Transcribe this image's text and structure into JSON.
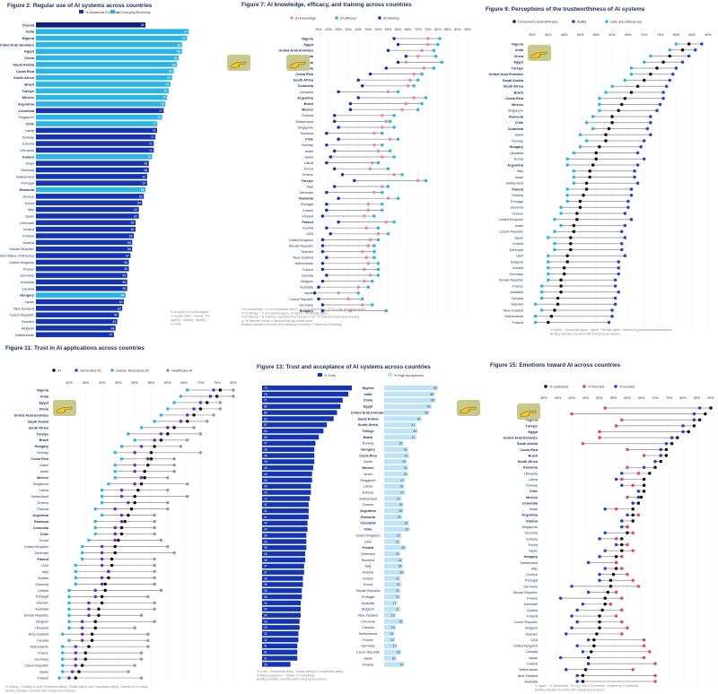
{
  "colors": {
    "dark": "#1535b0",
    "cyan": "#29b6e6",
    "light": "#bfe3f5",
    "pink": "#e889b3",
    "purple": "#6a2ec9",
    "blue": "#2546c8",
    "black": "#111111",
    "gray": "#9a9a9a",
    "red": "#e0457b"
  },
  "icons": [
    "pointing-hand-icon"
  ],
  "fig2": {
    "title": "Figure 2: Regular use of AI systems across countries",
    "legend": [
      "% Advanced Economy",
      "% Emerging Economy"
    ],
    "note": [
      "% Using AI on a semi-regular",
      "or regular basis - 'weekly', 'fre-",
      "quently', 'monthly', 'weekly'",
      "or 'daily'"
    ],
    "countries": [
      "Overall",
      "India",
      "Nigeria",
      "United Arab Emirates",
      "Egypt",
      "China",
      "Saudi Arabia",
      "Costa Rica",
      "South Africa",
      "Brazil",
      "Türkiye",
      "Mexico",
      "Argentina",
      "Colombia",
      "Singapore",
      "Chile",
      "Latvia",
      "Norway",
      "Estonia",
      "Lithuania",
      "Poland",
      "Israel",
      "Slovenia",
      "Switzerland",
      "Portugal",
      "Romania",
      "Greece",
      "Korea",
      "Italy",
      "Spain",
      "Denmark",
      "Ireland",
      "Finland",
      "Austria",
      "Slovak Republic",
      "United States of America",
      "United Kingdom",
      "France",
      "Germany",
      "Australia",
      "Canada",
      "Hungary",
      "Japan",
      "New Zealand",
      "Czech Republic",
      "Sweden",
      "Belgium",
      "Netherlands"
    ],
    "values": [
      66,
      92,
      91,
      88,
      88,
      86,
      85,
      83,
      82,
      81,
      80,
      79,
      78,
      77,
      76,
      73,
      73,
      72,
      71,
      71,
      70,
      68,
      68,
      67,
      67,
      66,
      65,
      64,
      62,
      62,
      60,
      60,
      59,
      58,
      58,
      57,
      56,
      56,
      55,
      55,
      55,
      54,
      53,
      52,
      50,
      49,
      48,
      47
    ],
    "emerging": [
      1,
      1,
      1,
      1,
      1,
      1,
      1,
      1,
      1,
      1,
      1,
      1,
      1,
      0,
      1,
      1,
      0,
      0,
      0,
      0,
      1,
      0,
      0,
      0,
      0,
      1,
      0,
      0,
      0,
      0,
      0,
      0,
      0,
      0,
      0,
      0,
      0,
      0,
      0,
      0,
      0,
      1,
      0,
      0,
      0,
      0,
      0,
      0
    ],
    "boldRows": [
      "Overall",
      "India",
      "Nigeria",
      "United Arab Emirates",
      "Egypt",
      "China",
      "Saudi Arabia",
      "Costa Rica",
      "South Africa",
      "Brazil",
      "Türkiye",
      "Mexico",
      "Argentina",
      "Colombia",
      "Chile",
      "Poland",
      "Romania",
      "Hungary"
    ]
  },
  "fig7": {
    "title": "Figure 7: AI knowledge, efficacy, and training across countries",
    "legend": [
      "AI knowledge",
      "AI efficacy",
      "AI training"
    ],
    "ticks": [
      "20%",
      "25%",
      "30%",
      "35%",
      "40%",
      "45%",
      "50%",
      "55%",
      "60%",
      "65%",
      "70%",
      "75%",
      "80%",
      "85%",
      "90%",
      "95%"
    ],
    "tickValues": [
      20,
      25,
      30,
      35,
      40,
      45,
      50,
      55,
      60,
      65,
      70,
      75,
      80,
      85,
      90,
      95
    ],
    "countries": [
      "Nigeria",
      "Egypt",
      "United Arab Emirates",
      "India",
      "China",
      "Saudi Arabia",
      "Costa Rica",
      "South Africa",
      "Colombia",
      "Lithuania",
      "Argentina",
      "Brazil",
      "Mexico",
      "Estonia",
      "Switzerland",
      "Singapore",
      "Slovenia",
      "Chile",
      "Norway",
      "Israel",
      "Spain",
      "Latvia",
      "Korea",
      "Greece",
      "Türkiye",
      "Italy",
      "Denmark",
      "Romania",
      "Portugal",
      "Ireland",
      "Finland",
      "Poland",
      "Austria",
      "USA",
      "United Kingdom",
      "Slovak Republic",
      "Sweden",
      "New Zealand",
      "Netherlands",
      "France",
      "Canada",
      "Belgium",
      "Australia",
      "Japan",
      "Czech Republic",
      "Germany",
      "Hungary"
    ],
    "knowledge": [
      75,
      75,
      72,
      70,
      64,
      73,
      68,
      66,
      65,
      55,
      68,
      64,
      62,
      52,
      54,
      52,
      48,
      56,
      48,
      50,
      52,
      47,
      46,
      58,
      70,
      52,
      48,
      55,
      45,
      45,
      43,
      54,
      44,
      50,
      46,
      45,
      42,
      44,
      45,
      43,
      46,
      43,
      40,
      30,
      35,
      42,
      36
    ],
    "efficacy": [
      81,
      80,
      78,
      79,
      82,
      78,
      72,
      70,
      68,
      60,
      74,
      72,
      70,
      58,
      56,
      58,
      52,
      60,
      52,
      56,
      58,
      50,
      55,
      62,
      74,
      55,
      52,
      60,
      52,
      52,
      48,
      58,
      50,
      55,
      50,
      48,
      48,
      48,
      50,
      50,
      50,
      47,
      45,
      40,
      42,
      47,
      54
    ],
    "training": [
      58,
      60,
      55,
      64,
      60,
      54,
      46,
      40,
      42,
      30,
      40,
      36,
      36,
      28,
      28,
      30,
      24,
      30,
      24,
      28,
      26,
      24,
      28,
      32,
      38,
      28,
      24,
      30,
      24,
      24,
      22,
      30,
      24,
      26,
      22,
      22,
      22,
      24,
      22,
      22,
      24,
      22,
      20,
      18,
      20,
      22,
      22
    ],
    "boldRows": [
      "Nigeria",
      "Egypt",
      "United Arab Emirates",
      "India",
      "China",
      "Saudi Arabia",
      "Costa Rica",
      "South Africa",
      "Colombia",
      "Argentina",
      "Brazil",
      "Mexico",
      "Chile",
      "Türkiye",
      "Romania",
      "Poland",
      "Hungary"
    ],
    "note": [
      "% AI knowledge = % 'to a moderate extent', '% To a great extent', '% To a 'fair' and 'large extent'",
      "% AI efficacy = % 'Somewhat agree', '% Agree', '% Strongly agree'",
      "% AI training = % 'training / education that focuses on AI', '% Selected work-based training'",
      "or '% Selected formal or informal training outside work'",
      "Bolding indicates countries with emerging economies. Ordered by AI training."
    ]
  },
  "fig9": {
    "title": "Figure 9: Perceptions of the trustworthiness of AI systems",
    "legend": [
      "Perceived trustworthiness",
      "Ability",
      "Safe and ethical use"
    ],
    "ticks": [
      "35%",
      "40%",
      "45%",
      "50%",
      "55%",
      "60%",
      "65%",
      "70%",
      "75%",
      "80%",
      "85%",
      "90%"
    ],
    "tickValues": [
      35,
      40,
      45,
      50,
      55,
      60,
      65,
      70,
      75,
      80,
      85,
      90
    ],
    "countries": [
      "Nigeria",
      "India",
      "China",
      "Egypt",
      "Türkiye",
      "United Arab Emirates",
      "Saudi Arabia",
      "South Africa",
      "Brazil",
      "Costa Rica",
      "Mexico",
      "Singapore",
      "Romania",
      "Chile",
      "Colombia",
      "Spain",
      "Norway",
      "Hungary",
      "Lithuania",
      "Korea",
      "Argentina",
      "Italy",
      "Israel",
      "Switzerland",
      "Poland",
      "Estonia",
      "Portugal",
      "Slovenia",
      "Greece",
      "United Kingdom",
      "Israel",
      "Czech Republic",
      "Japan",
      "Ireland",
      "Denmark",
      "USA",
      "Belgium",
      "Austria",
      "Germany",
      "Slovak Republic",
      "France",
      "Australia",
      "Canada",
      "Sweden",
      "New Zealand",
      "Netherlands",
      "Finland"
    ],
    "trust": [
      84,
      82,
      78,
      76,
      74,
      72,
      70,
      68,
      66,
      64,
      63,
      62,
      60,
      60,
      59,
      58,
      58,
      56,
      55,
      55,
      54,
      53,
      53,
      52,
      52,
      51,
      50,
      50,
      49,
      49,
      48,
      48,
      47,
      47,
      47,
      46,
      46,
      45,
      45,
      44,
      44,
      44,
      43,
      43,
      42,
      41,
      40
    ],
    "ability": [
      88,
      86,
      84,
      82,
      80,
      79,
      78,
      77,
      76,
      76,
      75,
      74,
      72,
      72,
      71,
      72,
      70,
      69,
      68,
      70,
      68,
      67,
      67,
      68,
      66,
      66,
      65,
      65,
      64,
      66,
      64,
      63,
      64,
      63,
      63,
      64,
      62,
      62,
      62,
      61,
      61,
      62,
      61,
      61,
      60,
      60,
      59
    ],
    "safe": [
      80,
      78,
      72,
      70,
      66,
      66,
      64,
      60,
      58,
      56,
      56,
      56,
      54,
      52,
      54,
      50,
      52,
      50,
      48,
      46,
      46,
      48,
      48,
      48,
      46,
      46,
      46,
      44,
      44,
      42,
      44,
      42,
      40,
      42,
      42,
      40,
      40,
      40,
      40,
      40,
      38,
      38,
      38,
      36,
      38,
      36,
      36
    ],
    "boldRows": [
      "Nigeria",
      "India",
      "China",
      "Egypt",
      "Türkiye",
      "United Arab Emirates",
      "Saudi Arabia",
      "South Africa",
      "Brazil",
      "Costa Rica",
      "Mexico",
      "Romania",
      "Chile",
      "Colombia",
      "Hungary",
      "Argentina",
      "Poland"
    ],
    "note": [
      "% Agree = 'Somewhat agree', 'Agree', 'Strongly agree'. Ordered by perceived trustworthiness.",
      "Bolding indicates countries with emerging economies."
    ]
  },
  "fig11": {
    "title": "Figure 11: Trust in AI applications across countries",
    "legend": [
      "AI",
      "Generative AI",
      "Human Resources  AI",
      "Healthcare AI"
    ],
    "ticks": [
      "30%",
      "35%",
      "40%",
      "45%",
      "50%",
      "55%",
      "60%",
      "65%",
      "70%",
      "75%",
      "80%"
    ],
    "tickValues": [
      30,
      35,
      40,
      45,
      50,
      55,
      60,
      65,
      70,
      75,
      80
    ],
    "countries": [
      "Nigeria",
      "India",
      "Egypt",
      "China",
      "United Arab Emirates",
      "Saudi Arabia",
      "South Africa",
      "Türkiye",
      "Brazil",
      "Hungary",
      "Norway",
      "Costa Rica",
      "Spain",
      "Israel",
      "Mexico",
      "Singapore",
      "Latvia",
      "Switzerland",
      "Greece",
      "Estonia",
      "Argentina",
      "Romania",
      "Colombia",
      "Chile",
      "Korea",
      "United Kingdom",
      "Denmark",
      "Poland",
      "USA",
      "Italy",
      "Austria",
      "Slovenia",
      "Ireland",
      "Portugal",
      "Sweden",
      "Australia",
      "Slovak Republic",
      "Belgium",
      "Lithuania",
      "New Zealand",
      "Canada",
      "Netherlands",
      "France",
      "Germany",
      "Czech Republic",
      "Japan",
      "Finland"
    ],
    "ai": [
      76,
      75,
      72,
      70,
      68,
      66,
      62,
      60,
      58,
      56,
      55,
      55,
      54,
      53,
      53,
      52,
      51,
      50,
      50,
      49,
      48,
      47,
      46,
      46,
      45,
      44,
      44,
      43,
      43,
      42,
      42,
      41,
      41,
      40,
      40,
      39,
      39,
      38,
      38,
      37,
      37,
      36,
      35,
      35,
      34,
      33,
      32
    ],
    "genai": [
      74,
      73,
      70,
      68,
      66,
      64,
      60,
      58,
      56,
      52,
      50,
      54,
      50,
      50,
      52,
      50,
      46,
      46,
      48,
      44,
      46,
      46,
      44,
      44,
      44,
      40,
      40,
      40,
      40,
      42,
      40,
      40,
      38,
      38,
      36,
      36,
      36,
      34,
      34,
      34,
      34,
      32,
      32,
      32,
      32,
      31,
      30
    ],
    "hr": [
      66,
      64,
      62,
      60,
      58,
      56,
      52,
      48,
      50,
      46,
      44,
      46,
      44,
      44,
      44,
      42,
      40,
      40,
      40,
      38,
      40,
      38,
      38,
      38,
      36,
      34,
      34,
      34,
      32,
      32,
      32,
      32,
      30,
      30,
      30,
      30,
      30,
      30,
      30,
      28,
      30,
      28,
      28,
      28,
      28,
      28,
      27
    ],
    "health": [
      80,
      80,
      76,
      76,
      74,
      72,
      68,
      70,
      66,
      64,
      70,
      62,
      62,
      62,
      60,
      66,
      60,
      66,
      60,
      60,
      56,
      56,
      56,
      56,
      58,
      60,
      62,
      56,
      56,
      56,
      56,
      56,
      58,
      54,
      56,
      56,
      52,
      56,
      50,
      54,
      54,
      54,
      52,
      52,
      50,
      48,
      52
    ],
    "boldRows": [
      "Nigeria",
      "India",
      "Egypt",
      "China",
      "United Arab Emirates",
      "Saudi Arabia",
      "South Africa",
      "Türkiye",
      "Brazil",
      "Hungary",
      "Costa Rica",
      "Mexico",
      "Argentina",
      "Romania",
      "Colombia",
      "Chile",
      "Poland"
    ],
    "note": [
      "% Willing = % willing to trust 'Somewhat willing', 'Mostly willing' and 'Completely willing'. Ordered by % willing.",
      "Bolding indicates countries with emerging economies."
    ]
  },
  "fig13": {
    "title": "Figure 13: Trust and acceptance of AI systems across countries",
    "legend": [
      "% Trust",
      "% High acceptance"
    ],
    "countries": [
      "Nigeria",
      "India",
      "China",
      "Egypt",
      "United Arab Emirates",
      "Saudi Arabia",
      "South Africa",
      "Türkiye",
      "Brazil",
      "Norway",
      "Hungary",
      "Costa Rica",
      "Spain",
      "Mexico",
      "Israel",
      "Singapore",
      "Latvia",
      "Estonia",
      "Switzerland",
      "Greece",
      "Argentina",
      "Romania",
      "Colombia",
      "Chile",
      "United Kingdom",
      "USA",
      "Poland",
      "Denmark",
      "Slovenia",
      "Italy",
      "Austria",
      "Ireland",
      "Korea",
      "Slovak Republic",
      "Portugal",
      "Australia",
      "Belgium",
      "New Zealand",
      "Lithuania",
      "Canada",
      "Netherlands",
      "France",
      "Germany",
      "Czech Republic",
      "Japan",
      "Finland"
    ],
    "trust": [
      79,
      76,
      71,
      69,
      66,
      63,
      57,
      54,
      50,
      47,
      46,
      46,
      46,
      45,
      44,
      44,
      43,
      43,
      42,
      41,
      41,
      41,
      40,
      40,
      39,
      39,
      39,
      38,
      38,
      37,
      37,
      36,
      36,
      35,
      35,
      34,
      34,
      34,
      33,
      33,
      32,
      32,
      31,
      31,
      31,
      25
    ],
    "accept": [
      69,
      65,
      66,
      61,
      58,
      48,
      41,
      43,
      41,
      25,
      31,
      32,
      29,
      31,
      31,
      27,
      26,
      27,
      22,
      25,
      25,
      23,
      32,
      33,
      22,
      21,
      28,
      21,
      24,
      24,
      26,
      21,
      22,
      21,
      21,
      17,
      21,
      15,
      25,
      15,
      13,
      14,
      17,
      22,
      16,
      26
    ],
    "boldRows": [
      "Nigeria",
      "India",
      "China",
      "Egypt",
      "United Arab Emirates",
      "Saudi Arabia",
      "South Africa",
      "Türkiye",
      "Brazil",
      "Hungary",
      "Costa Rica",
      "Mexico",
      "Argentina",
      "Romania",
      "Colombia",
      "Chile",
      "Poland"
    ],
    "note": [
      "% Trust = 'Somewhat willing', 'Mostly willing' or 'Completely willing'",
      "% High acceptance = 'Highly' or 'Completely'",
      "Bolding indicates countries with emerging economies."
    ]
  },
  "fig15": {
    "title": "Figure 15: Emotions toward AI across countries",
    "legend": [
      "% Optimistic",
      "% Worried",
      "% Excited"
    ],
    "ticks": [
      "30%",
      "35%",
      "40%",
      "45%",
      "50%",
      "55%",
      "60%",
      "65%",
      "70%",
      "75%",
      "80%",
      "85%",
      "90%"
    ],
    "tickValues": [
      30,
      35,
      40,
      45,
      50,
      55,
      60,
      65,
      70,
      75,
      80,
      85,
      90
    ],
    "countries": [
      "India",
      "China",
      "Nigeria",
      "Türkiye",
      "Egypt",
      "United Arab Emirates",
      "Saudi Arabia",
      "Costa Rica",
      "Brazil",
      "South Africa",
      "Romania",
      "Lithuania",
      "Latvia",
      "Norway",
      "Chile",
      "Mexico",
      "Colombia",
      "Israel",
      "Argentina",
      "Poland",
      "Singapore",
      "Slovenia",
      "Estonia",
      "Korea",
      "Spain",
      "Hungary",
      "Switzerland",
      "Italy",
      "Greece",
      "Portugal",
      "Germany",
      "Slovak Republic",
      "France",
      "Denmark",
      "Austria",
      "Finland",
      "Czech Republic",
      "Belgium",
      "Sweden",
      "USA",
      "United Kingdom",
      "Canada",
      "Japan",
      "Ireland",
      "Netherlands",
      "New Zealand",
      "Australia"
    ],
    "optimistic": [
      90,
      88,
      86,
      84,
      82,
      78,
      76,
      74,
      74,
      72,
      70,
      68,
      66,
      66,
      66,
      65,
      64,
      62,
      62,
      62,
      60,
      60,
      58,
      58,
      58,
      56,
      56,
      56,
      55,
      54,
      54,
      53,
      52,
      52,
      51,
      50,
      50,
      50,
      49,
      48,
      48,
      47,
      46,
      46,
      45,
      44,
      44
    ],
    "worried": [
      52,
      40,
      58,
      56,
      50,
      50,
      44,
      60,
      66,
      70,
      60,
      64,
      58,
      62,
      64,
      60,
      62,
      56,
      64,
      58,
      60,
      62,
      56,
      60,
      62,
      58,
      56,
      58,
      60,
      62,
      64,
      56,
      58,
      54,
      58,
      56,
      58,
      60,
      58,
      66,
      66,
      68,
      66,
      70,
      62,
      70,
      70
    ],
    "excited": [
      86,
      84,
      84,
      80,
      80,
      76,
      74,
      72,
      72,
      70,
      66,
      58,
      56,
      58,
      64,
      64,
      62,
      52,
      60,
      58,
      58,
      52,
      50,
      56,
      52,
      50,
      46,
      52,
      50,
      50,
      40,
      46,
      36,
      44,
      42,
      40,
      42,
      40,
      38,
      46,
      42,
      44,
      36,
      46,
      38,
      42,
      42
    ],
    "boldRows": [
      "India",
      "China",
      "Nigeria",
      "Türkiye",
      "Egypt",
      "United Arab Emirates",
      "Saudi Arabia",
      "Costa Rica",
      "Brazil",
      "South Africa",
      "Romania",
      "Chile",
      "Mexico",
      "Colombia",
      "Argentina",
      "Poland",
      "Hungary"
    ],
    "note": [
      "% Agree = % 'Moderately', '% Very' and '% Extremely'. Ordered by % optimistic.",
      "Bolding indicates countries with emerging economies."
    ]
  }
}
